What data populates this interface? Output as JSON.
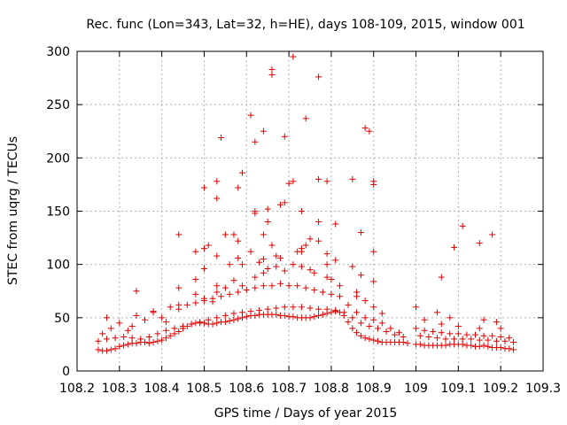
{
  "chart_data": {
    "type": "scatter",
    "title": "Rec. func (Lon=343, Lat=32, h=HE), days 108-109, 2015, window 001",
    "xlabel": "GPS time / Days of year 2015",
    "ylabel": "STEC from uqrg / TECUs",
    "xlim": [
      108.2,
      109.3
    ],
    "ylim": [
      0,
      300
    ],
    "grid": true,
    "marker": "+",
    "color": "#e00000",
    "x_ticks": [
      "108.2",
      "108.3",
      "108.4",
      "108.5",
      "108.6",
      "108.7",
      "108.8",
      "108.9",
      "109",
      "109.1",
      "109.2",
      "109.3"
    ],
    "y_ticks": [
      "0",
      "50",
      "100",
      "150",
      "200",
      "250",
      "300"
    ],
    "series": [
      {
        "name": "STEC",
        "x": [
          108.25,
          108.26,
          108.27,
          108.28,
          108.29,
          108.3,
          108.31,
          108.32,
          108.33,
          108.34,
          108.35,
          108.36,
          108.37,
          108.38,
          108.39,
          108.4,
          108.41,
          108.42,
          108.43,
          108.44,
          108.45,
          108.46,
          108.47,
          108.48,
          108.49,
          108.5,
          108.51,
          108.52,
          108.53,
          108.54,
          108.55,
          108.56,
          108.57,
          108.58,
          108.59,
          108.6,
          108.61,
          108.62,
          108.63,
          108.64,
          108.65,
          108.66,
          108.67,
          108.68,
          108.69,
          108.7,
          108.71,
          108.72,
          108.73,
          108.74,
          108.75,
          108.76,
          108.77,
          108.78,
          108.79,
          108.8,
          108.81,
          108.82,
          108.83,
          108.84,
          108.85,
          108.86,
          108.87,
          108.88,
          108.89,
          108.9,
          108.91,
          108.92,
          108.93,
          108.94,
          108.95,
          108.96,
          108.97,
          108.98,
          109.0,
          109.01,
          109.02,
          109.03,
          109.04,
          109.05,
          109.06,
          109.07,
          109.08,
          109.09,
          109.1,
          109.11,
          109.12,
          109.13,
          109.14,
          109.15,
          109.16,
          109.17,
          109.18,
          109.19,
          109.2,
          109.21,
          109.22,
          109.23,
          108.25,
          108.27,
          108.29,
          108.31,
          108.33,
          108.35,
          108.37,
          108.39,
          108.41,
          108.43,
          108.45,
          108.47,
          108.49,
          108.51,
          108.53,
          108.55,
          108.57,
          108.59,
          108.61,
          108.63,
          108.65,
          108.67,
          108.69,
          108.71,
          108.73,
          108.75,
          108.77,
          108.79,
          108.81,
          108.83,
          108.85,
          108.87,
          108.89,
          108.91,
          108.93,
          108.95,
          108.97,
          109.01,
          109.03,
          109.05,
          109.07,
          109.09,
          109.11,
          109.13,
          109.15,
          109.17,
          109.19,
          109.21,
          109.23,
          108.26,
          108.28,
          108.3,
          108.32,
          108.34,
          108.36,
          108.38,
          108.4,
          108.42,
          108.44,
          108.46,
          108.48,
          108.5,
          108.52,
          108.54,
          108.56,
          108.58,
          108.6,
          108.62,
          108.64,
          108.66,
          108.68,
          108.7,
          108.72,
          108.74,
          108.76,
          108.78,
          108.8,
          108.82,
          108.84,
          108.86,
          108.88,
          108.9,
          108.92,
          108.94,
          108.96,
          109.0,
          109.02,
          109.04,
          109.06,
          109.08,
          109.1,
          109.12,
          109.14,
          109.16,
          109.18,
          109.2,
          109.22,
          108.27,
          108.33,
          108.38,
          108.41,
          108.44,
          108.48,
          108.5,
          108.52,
          108.53,
          108.55,
          108.57,
          108.59,
          108.62,
          108.64,
          108.65,
          108.67,
          108.69,
          108.71,
          108.73,
          108.75,
          108.76,
          108.79,
          108.8,
          108.82,
          108.86,
          108.88,
          108.9,
          108.92,
          109.02,
          109.06,
          109.1,
          109.15,
          109.2,
          108.34,
          108.44,
          108.48,
          108.5,
          108.53,
          108.56,
          108.58,
          108.61,
          108.63,
          108.66,
          108.68,
          108.72,
          108.74,
          108.77,
          108.79,
          108.81,
          108.85,
          108.87,
          108.9,
          109.0,
          109.05,
          109.08,
          109.16,
          109.19,
          108.44,
          108.48,
          108.51,
          108.53,
          108.55,
          108.58,
          108.62,
          108.64,
          108.65,
          108.68,
          108.7,
          108.73,
          108.75,
          108.77,
          108.81,
          108.87,
          108.9,
          109.09,
          109.15,
          109.18,
          108.5,
          108.53,
          108.57,
          108.59,
          108.62,
          108.64,
          108.66,
          108.69,
          108.71,
          108.74,
          108.77,
          108.85,
          108.88,
          108.9,
          109.06,
          109.11,
          108.5,
          108.53,
          108.58,
          108.61,
          108.66,
          108.71,
          108.77,
          108.86,
          108.9,
          108.54,
          108.62,
          108.65,
          108.69,
          108.79,
          108.89,
          108.59,
          108.64,
          108.67,
          108.73,
          108.79,
          108.73
        ],
        "y": [
          20,
          19,
          19,
          20,
          21,
          23,
          24,
          25,
          26,
          26,
          27,
          27,
          26,
          27,
          28,
          29,
          31,
          33,
          35,
          37,
          40,
          42,
          44,
          45,
          45,
          45,
          44,
          44,
          45,
          46,
          46,
          47,
          48,
          49,
          50,
          51,
          52,
          52,
          53,
          53,
          53,
          53,
          53,
          52,
          52,
          51,
          51,
          50,
          50,
          50,
          50,
          51,
          52,
          53,
          54,
          55,
          56,
          55,
          52,
          46,
          40,
          36,
          33,
          31,
          30,
          29,
          28,
          27,
          27,
          27,
          27,
          27,
          27,
          26,
          25,
          25,
          24,
          24,
          24,
          24,
          24,
          24,
          25,
          25,
          25,
          25,
          24,
          24,
          23,
          23,
          24,
          23,
          22,
          22,
          22,
          21,
          21,
          20,
          28,
          30,
          31,
          32,
          31,
          30,
          32,
          35,
          38,
          40,
          42,
          44,
          46,
          48,
          50,
          52,
          54,
          55,
          56,
          57,
          58,
          59,
          60,
          60,
          60,
          59,
          58,
          58,
          57,
          55,
          50,
          45,
          42,
          40,
          37,
          34,
          32,
          33,
          32,
          31,
          30,
          30,
          30,
          30,
          29,
          29,
          28,
          28,
          27,
          35,
          40,
          45,
          38,
          52,
          48,
          55,
          50,
          60,
          58,
          62,
          64,
          66,
          68,
          70,
          72,
          74,
          76,
          78,
          80,
          80,
          82,
          80,
          80,
          78,
          76,
          74,
          72,
          70,
          62,
          55,
          50,
          48,
          45,
          40,
          36,
          40,
          38,
          37,
          36,
          35,
          35,
          34,
          34,
          33,
          33,
          32,
          31,
          50,
          42,
          56,
          46,
          62,
          72,
          68,
          65,
          74,
          78,
          85,
          80,
          88,
          92,
          96,
          98,
          94,
          100,
          98,
          95,
          92,
          88,
          86,
          80,
          74,
          66,
          60,
          54,
          48,
          44,
          42,
          40,
          40,
          75,
          78,
          86,
          96,
          80,
          100,
          106,
          112,
          102,
          118,
          106,
          112,
          118,
          122,
          110,
          104,
          98,
          90,
          84,
          60,
          55,
          50,
          48,
          46,
          128,
          112,
          118,
          108,
          128,
          122,
          148,
          128,
          140,
          156,
          176,
          150,
          124,
          140,
          138,
          130,
          112,
          116,
          120,
          128,
          115,
          178,
          128,
          186,
          215,
          225,
          278,
          220,
          178,
          237,
          180,
          180,
          228,
          178,
          88,
          136,
          172,
          162,
          172,
          240,
          283,
          295,
          276,
          70,
          175,
          219,
          150,
          152,
          158,
          178,
          225,
          100,
          105,
          108,
          115,
          100,
          112
        ]
      }
    ]
  }
}
